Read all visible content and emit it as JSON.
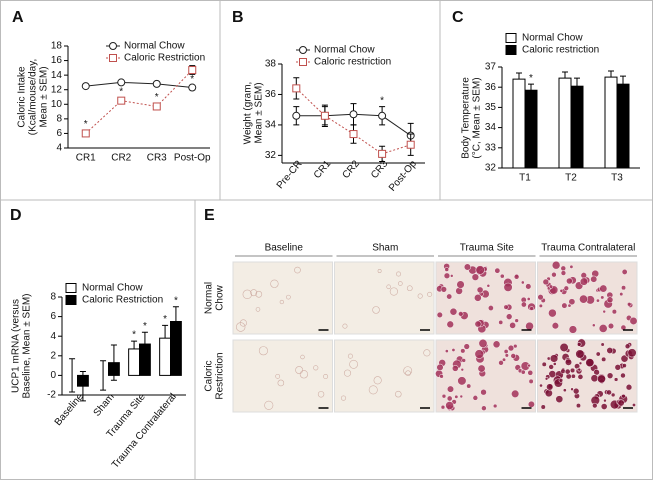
{
  "chart_data": [
    {
      "type": "line",
      "panel": "A",
      "ylabel": [
        "Caloric Intake",
        "(Kcal/mouse/day,",
        "Mean ± SEM)"
      ],
      "categories": [
        "CR1",
        "CR2",
        "CR3",
        "Post-Op"
      ],
      "series": [
        {
          "name": "Normal Chow",
          "color": "#222222",
          "marker": "circle",
          "line_style": "solid",
          "values": [
            12.5,
            13,
            12.8,
            12.3
          ],
          "errors": [
            0.2,
            0.2,
            0.2,
            0.3
          ],
          "sig": [
            null,
            null,
            null,
            "*"
          ]
        },
        {
          "name": "Caloric Restriction",
          "color": "#c0504d",
          "marker": "square",
          "line_style": "dotted",
          "values": [
            6,
            10.5,
            9.7,
            14.7
          ],
          "errors": [
            0.4,
            0.4,
            0.4,
            0.6
          ],
          "sig": [
            "*",
            "*",
            "*",
            null
          ]
        }
      ],
      "ylim": [
        4,
        18
      ],
      "yticks": [
        4,
        6,
        8,
        10,
        12,
        14,
        16,
        18
      ],
      "legend": "top-right"
    },
    {
      "type": "line",
      "panel": "B",
      "ylabel": [
        "Weight (gram,",
        "Mean ± SEM)"
      ],
      "categories": [
        "Pre-CR",
        "CR1",
        "CR2",
        "CR3",
        "Post-Op"
      ],
      "series": [
        {
          "name": "Normal Chow",
          "color": "#222222",
          "marker": "circle",
          "line_style": "solid",
          "values": [
            34.6,
            34.6,
            34.7,
            34.6,
            33.3
          ],
          "errors": [
            0.6,
            0.7,
            0.7,
            0.6,
            0.8
          ],
          "sig": [
            null,
            null,
            null,
            "*",
            null
          ]
        },
        {
          "name": "Caloric restriction",
          "color": "#c0504d",
          "marker": "square",
          "line_style": "dotted",
          "values": [
            36.4,
            34.6,
            33.4,
            32.1,
            32.7
          ],
          "errors": [
            0.7,
            0.6,
            0.6,
            0.5,
            0.7
          ],
          "sig": [
            null,
            null,
            null,
            null,
            null
          ]
        }
      ],
      "ylim": [
        31.5,
        38
      ],
      "yticks": [
        32,
        34,
        36,
        38
      ],
      "legend": "top-right"
    },
    {
      "type": "bar",
      "panel": "C",
      "ylabel": [
        "Body Temperature",
        "(°C, Mean ± SEM)"
      ],
      "categories": [
        "T1",
        "T2",
        "T3"
      ],
      "series": [
        {
          "name": "Normal Chow",
          "color": "#ffffff",
          "values": [
            36.4,
            36.45,
            36.5
          ],
          "errors": [
            0.3,
            0.3,
            0.3
          ],
          "sig": [
            null,
            null,
            null
          ]
        },
        {
          "name": "Caloric restriction",
          "color": "#000000",
          "values": [
            35.85,
            36.05,
            36.15
          ],
          "errors": [
            0.3,
            0.4,
            0.4
          ],
          "sig": [
            "*",
            null,
            null
          ]
        }
      ],
      "ylim": [
        32,
        37
      ],
      "yticks": [
        32,
        33,
        34,
        35,
        36,
        37
      ],
      "legend": "top"
    },
    {
      "type": "bar",
      "panel": "D",
      "ylabel": [
        "UCP1 mRNA (versus",
        "Baseline, Mean ± SEM)"
      ],
      "categories": [
        "Baseline",
        "Sham",
        "Trauma Site",
        "Trauma Contralateral"
      ],
      "series": [
        {
          "name": "Normal Chow",
          "color": "#ffffff",
          "values": [
            0,
            0,
            2.7,
            3.8
          ],
          "errors": [
            1.7,
            1.5,
            0.8,
            1.3
          ],
          "sig": [
            null,
            null,
            "*",
            "*"
          ]
        },
        {
          "name": "Caloric Restriction",
          "color": "#000000",
          "values": [
            -1.1,
            1.3,
            3.2,
            5.5
          ],
          "errors": [
            1.5,
            1.8,
            1.2,
            1.5
          ],
          "sig": [
            null,
            null,
            "*",
            "*"
          ]
        }
      ],
      "ylim": [
        -2,
        8
      ],
      "yticks": [
        -2,
        0,
        2,
        4,
        6,
        8
      ],
      "legend": "top-left"
    }
  ],
  "micrographs": {
    "panel": "E",
    "columns": [
      "Baseline",
      "Sham",
      "Trauma Site",
      "Trauma Contralateral"
    ],
    "rows": [
      [
        "Normal",
        "Chow"
      ],
      [
        "Caloric",
        "Restriction"
      ]
    ]
  }
}
